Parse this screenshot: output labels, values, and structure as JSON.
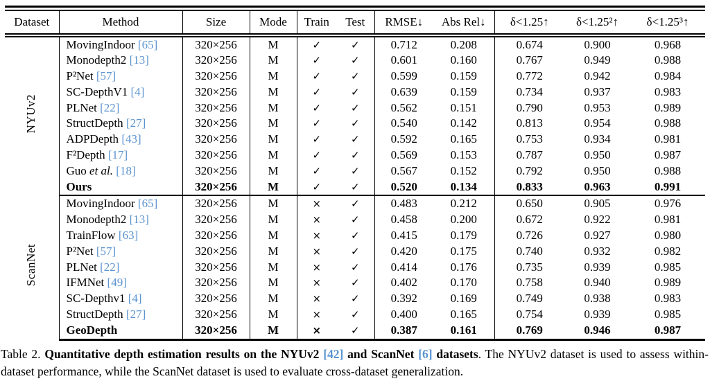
{
  "accent_color": "#5c94d0",
  "table": {
    "headers": {
      "dataset": "Dataset",
      "method": "Method",
      "size": "Size",
      "mode": "Mode",
      "train": "Train",
      "test": "Test",
      "rmse": "RMSE↓",
      "absrel": "Abs Rel↓",
      "d1": "δ<1.25↑",
      "d2": "δ<1.25²↑",
      "d3": "δ<1.25³↑"
    },
    "groups": [
      {
        "dataset": "NYUv2",
        "rows": [
          {
            "name": "MovingIndoor",
            "cite": "[65]",
            "size": "320×256",
            "mode": "M",
            "train": "✓",
            "test": "✓",
            "rmse": "0.712",
            "absrel": "0.208",
            "d1": "0.674",
            "d2": "0.900",
            "d3": "0.968"
          },
          {
            "name": "Monodepth2",
            "cite": "[13]",
            "size": "320×256",
            "mode": "M",
            "train": "✓",
            "test": "✓",
            "rmse": "0.601",
            "absrel": "0.160",
            "d1": "0.767",
            "d2": "0.949",
            "d3": "0.988"
          },
          {
            "name": "P²Net",
            "cite": "[57]",
            "size": "320×256",
            "mode": "M",
            "train": "✓",
            "test": "✓",
            "rmse": "0.599",
            "absrel": "0.159",
            "d1": "0.772",
            "d2": "0.942",
            "d3": "0.984"
          },
          {
            "name": "SC-DepthV1",
            "cite": "[4]",
            "size": "320×256",
            "mode": "M",
            "train": "✓",
            "test": "✓",
            "rmse": "0.639",
            "absrel": "0.159",
            "d1": "0.734",
            "d2": "0.937",
            "d3": "0.983"
          },
          {
            "name": "PLNet",
            "cite": "[22]",
            "size": "320×256",
            "mode": "M",
            "train": "✓",
            "test": "✓",
            "rmse": "0.562",
            "absrel": "0.151",
            "d1": "0.790",
            "d2": "0.953",
            "d3": "0.989"
          },
          {
            "name": "StructDepth",
            "cite": "[27]",
            "size": "320×256",
            "mode": "M",
            "train": "✓",
            "test": "✓",
            "rmse": "0.540",
            "absrel": "0.142",
            "d1": "0.813",
            "d2": "0.954",
            "d3": "0.988"
          },
          {
            "name": "ADPDepth",
            "cite": "[43]",
            "size": "320×256",
            "mode": "M",
            "train": "✓",
            "test": "✓",
            "rmse": "0.592",
            "absrel": "0.165",
            "d1": "0.753",
            "d2": "0.934",
            "d3": "0.981"
          },
          {
            "name": "F²Depth",
            "cite": "[17]",
            "size": "320×256",
            "mode": "M",
            "train": "✓",
            "test": "✓",
            "rmse": "0.569",
            "absrel": "0.153",
            "d1": "0.787",
            "d2": "0.950",
            "d3": "0.987"
          },
          {
            "name": "Guo",
            "etal": "et al.",
            "cite": "[18]",
            "size": "320×256",
            "mode": "M",
            "train": "✓",
            "test": "✓",
            "rmse": "0.567",
            "absrel": "0.152",
            "d1": "0.792",
            "d2": "0.950",
            "d3": "0.988"
          },
          {
            "name": "Ours",
            "bold": true,
            "size": "320×256",
            "mode": "M",
            "train": "✓",
            "test": "✓",
            "rmse": "0.520",
            "absrel": "0.134",
            "d1": "0.833",
            "d2": "0.963",
            "d3": "0.991"
          }
        ]
      },
      {
        "dataset": "ScanNet",
        "rows": [
          {
            "name": "MovingIndoor",
            "cite": "[65]",
            "size": "320×256",
            "mode": "M",
            "train": "×",
            "test": "✓",
            "rmse": "0.483",
            "absrel": "0.212",
            "d1": "0.650",
            "d2": "0.905",
            "d3": "0.976"
          },
          {
            "name": "Monodepth2",
            "cite": "[13]",
            "size": "320×256",
            "mode": "M",
            "train": "×",
            "test": "✓",
            "rmse": "0.458",
            "absrel": "0.200",
            "d1": "0.672",
            "d2": "0.922",
            "d3": "0.981"
          },
          {
            "name": "TrainFlow",
            "cite": "[63]",
            "size": "320×256",
            "mode": "M",
            "train": "×",
            "test": "✓",
            "rmse": "0.415",
            "absrel": "0.179",
            "d1": "0.726",
            "d2": "0.927",
            "d3": "0.980"
          },
          {
            "name": "P²Net",
            "cite": "[57]",
            "size": "320×256",
            "mode": "M",
            "train": "×",
            "test": "✓",
            "rmse": "0.420",
            "absrel": "0.175",
            "d1": "0.740",
            "d2": "0.932",
            "d3": "0.982"
          },
          {
            "name": "PLNet",
            "cite": "[22]",
            "size": "320×256",
            "mode": "M",
            "train": "×",
            "test": "✓",
            "rmse": "0.414",
            "absrel": "0.176",
            "d1": "0.735",
            "d2": "0.939",
            "d3": "0.985"
          },
          {
            "name": "IFMNet",
            "cite": "[49]",
            "size": "320×256",
            "mode": "M",
            "train": "×",
            "test": "✓",
            "rmse": "0.402",
            "absrel": "0.170",
            "d1": "0.758",
            "d2": "0.940",
            "d3": "0.989"
          },
          {
            "name": "SC-Depthv1",
            "cite": "[4]",
            "size": "320×256",
            "mode": "M",
            "train": "×",
            "test": "✓",
            "rmse": "0.392",
            "absrel": "0.169",
            "d1": "0.749",
            "d2": "0.938",
            "d3": "0.983"
          },
          {
            "name": "StructDepth",
            "cite": "[27]",
            "size": "320×256",
            "mode": "M",
            "train": "×",
            "test": "✓",
            "rmse": "0.400",
            "absrel": "0.165",
            "d1": "0.754",
            "d2": "0.939",
            "d3": "0.985"
          },
          {
            "name": "GeoDepth",
            "bold": true,
            "size": "320×256",
            "mode": "M",
            "train": "×",
            "test": "✓",
            "rmse": "0.387",
            "absrel": "0.161",
            "d1": "0.769",
            "d2": "0.946",
            "d3": "0.987"
          }
        ]
      }
    ]
  },
  "caption": {
    "prefix": "Table 2. ",
    "bold1": "Quantitative depth estimation results on the NYUv2 ",
    "cite1": "[42]",
    "bold2": " and ScanNet ",
    "cite2": "[6]",
    "bold3": " datasets",
    "rest": ". The NYUv2 dataset is used to assess within-dataset performance, while the ScanNet dataset is used to evaluate cross-dataset generalization."
  }
}
